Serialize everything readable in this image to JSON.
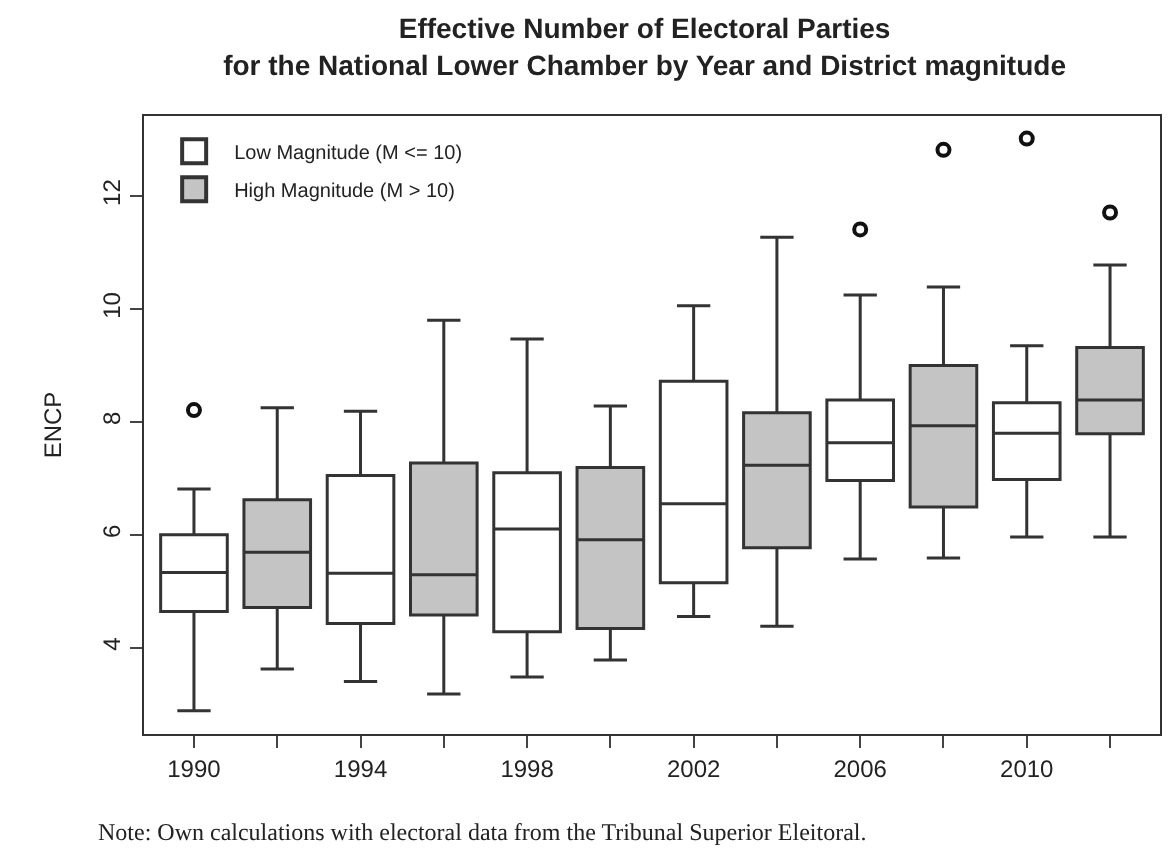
{
  "chart_data": {
    "type": "box",
    "title": "Effective Number of Electoral Parties\nfor the National Lower Chamber by Year and District magnitude",
    "ylabel": "ENCP",
    "categories": [
      "1990",
      null,
      "1994",
      null,
      "1998",
      null,
      "2002",
      null,
      "2006",
      null,
      "2010",
      null
    ],
    "ylim": [
      2.47,
      13.42
    ],
    "yticks": [
      4,
      6,
      8,
      10,
      12
    ],
    "legend": "top left",
    "annotations": [
      "Note: Own calculations with electoral data from the Tribunal Superior Eleitoral."
    ],
    "series": [
      {
        "name": "Low Magnitude (M <= 10)",
        "color": "#ffffff",
        "boxes": [
          {
            "low": 2.88,
            "q1": 4.64,
            "median": 5.33,
            "q3": 6.0,
            "high": 6.81,
            "outliers": [
              8.21
            ]
          },
          null,
          {
            "low": 3.4,
            "q1": 4.43,
            "median": 5.32,
            "q3": 7.05,
            "high": 8.19
          },
          null,
          {
            "low": 3.48,
            "q1": 4.28,
            "median": 6.1,
            "q3": 7.1,
            "high": 9.47
          },
          null,
          {
            "low": 4.55,
            "q1": 5.15,
            "median": 6.55,
            "q3": 8.72,
            "high": 10.06
          },
          null,
          {
            "low": 5.57,
            "q1": 6.96,
            "median": 7.63,
            "q3": 8.39,
            "high": 10.25,
            "outliers": [
              11.41
            ]
          },
          null,
          {
            "low": 5.96,
            "q1": 6.98,
            "median": 7.8,
            "q3": 8.34,
            "high": 9.35,
            "outliers": [
              13.02
            ]
          },
          null
        ]
      },
      {
        "name": "High Magnitude (M > 10)",
        "color": "#c4c4c4",
        "boxes": [
          null,
          {
            "low": 3.62,
            "q1": 4.71,
            "median": 5.69,
            "q3": 6.62,
            "high": 8.25
          },
          null,
          {
            "low": 3.18,
            "q1": 4.58,
            "median": 5.29,
            "q3": 7.27,
            "high": 9.8
          },
          null,
          {
            "low": 3.78,
            "q1": 4.34,
            "median": 5.91,
            "q3": 7.19,
            "high": 8.28
          },
          null,
          {
            "low": 4.38,
            "q1": 5.77,
            "median": 7.23,
            "q3": 8.16,
            "high": 11.27
          },
          null,
          {
            "low": 5.59,
            "q1": 6.49,
            "median": 7.93,
            "q3": 9.0,
            "high": 10.39,
            "outliers": [
              12.82
            ]
          },
          null,
          {
            "low": 5.96,
            "q1": 7.79,
            "median": 8.39,
            "q3": 9.32,
            "high": 10.78,
            "outliers": [
              11.71
            ]
          }
        ]
      }
    ]
  }
}
